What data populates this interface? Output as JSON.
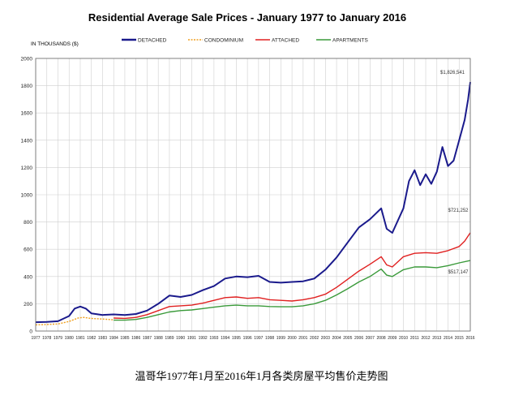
{
  "chart_data": {
    "type": "line",
    "title": "Residential Average Sale Prices  -  January 1977 to January 2016",
    "ylabel": "IN THOUSANDS ($)",
    "xlabel": "",
    "ylim": [
      0,
      2000
    ],
    "yticks": [
      0,
      200,
      400,
      600,
      800,
      1000,
      1200,
      1400,
      1600,
      1800,
      2000
    ],
    "xlim": [
      1977,
      2016
    ],
    "xticks": [
      "1977",
      "1978",
      "1979",
      "1980",
      "1981",
      "1982",
      "1983",
      "1984",
      "1985",
      "1986",
      "1987",
      "1988",
      "1989",
      "1990",
      "1991",
      "1992",
      "1993",
      "1994",
      "1995",
      "1996",
      "1997",
      "1998",
      "1999",
      "2000",
      "2001",
      "2002",
      "2003",
      "2004",
      "2005",
      "2006",
      "2007",
      "2008",
      "2009",
      "2010",
      "2011",
      "2012",
      "2013",
      "2014",
      "2015",
      "2016"
    ],
    "grid": true,
    "legend_position": "top",
    "series": [
      {
        "name": "DETACHED",
        "color": "#1a1a8c",
        "dash": "solid",
        "end_label": "$1,826,541",
        "points": [
          [
            1977,
            65
          ],
          [
            1978,
            67
          ],
          [
            1979,
            72
          ],
          [
            1980,
            110
          ],
          [
            1980.5,
            165
          ],
          [
            1981,
            180
          ],
          [
            1981.5,
            165
          ],
          [
            1982,
            130
          ],
          [
            1983,
            118
          ],
          [
            1984,
            122
          ],
          [
            1985,
            118
          ],
          [
            1986,
            125
          ],
          [
            1987,
            150
          ],
          [
            1988,
            200
          ],
          [
            1989,
            260
          ],
          [
            1990,
            250
          ],
          [
            1991,
            265
          ],
          [
            1992,
            300
          ],
          [
            1993,
            330
          ],
          [
            1994,
            385
          ],
          [
            1995,
            400
          ],
          [
            1996,
            395
          ],
          [
            1997,
            405
          ],
          [
            1998,
            360
          ],
          [
            1999,
            355
          ],
          [
            2000,
            360
          ],
          [
            2001,
            365
          ],
          [
            2002,
            385
          ],
          [
            2003,
            450
          ],
          [
            2004,
            540
          ],
          [
            2005,
            650
          ],
          [
            2006,
            760
          ],
          [
            2007,
            820
          ],
          [
            2008,
            900
          ],
          [
            2008.5,
            750
          ],
          [
            2009,
            720
          ],
          [
            2010,
            900
          ],
          [
            2010.5,
            1100
          ],
          [
            2011,
            1180
          ],
          [
            2011.5,
            1070
          ],
          [
            2012,
            1150
          ],
          [
            2012.5,
            1080
          ],
          [
            2013,
            1170
          ],
          [
            2013.5,
            1350
          ],
          [
            2014,
            1210
          ],
          [
            2014.5,
            1250
          ],
          [
            2015,
            1400
          ],
          [
            2015.5,
            1550
          ],
          [
            2015.8,
            1700
          ],
          [
            2016,
            1827
          ]
        ]
      },
      {
        "name": "CONDOMINIUM",
        "color": "#f0a020",
        "dash": "dotted",
        "end_label": "",
        "points": [
          [
            1977,
            45
          ],
          [
            1978,
            48
          ],
          [
            1979,
            52
          ],
          [
            1980,
            70
          ],
          [
            1980.8,
            95
          ],
          [
            1981.3,
            100
          ],
          [
            1982,
            92
          ],
          [
            1983,
            88
          ],
          [
            1984,
            82
          ]
        ]
      },
      {
        "name": "ATTACHED",
        "color": "#e02020",
        "dash": "solid",
        "end_label": "$721,252",
        "points": [
          [
            1984,
            95
          ],
          [
            1985,
            93
          ],
          [
            1986,
            100
          ],
          [
            1987,
            120
          ],
          [
            1988,
            150
          ],
          [
            1989,
            180
          ],
          [
            1990,
            185
          ],
          [
            1991,
            190
          ],
          [
            1992,
            205
          ],
          [
            1993,
            225
          ],
          [
            1994,
            245
          ],
          [
            1995,
            250
          ],
          [
            1996,
            240
          ],
          [
            1997,
            245
          ],
          [
            1998,
            230
          ],
          [
            1999,
            225
          ],
          [
            2000,
            220
          ],
          [
            2001,
            230
          ],
          [
            2002,
            245
          ],
          [
            2003,
            270
          ],
          [
            2004,
            320
          ],
          [
            2005,
            380
          ],
          [
            2006,
            440
          ],
          [
            2007,
            490
          ],
          [
            2008,
            545
          ],
          [
            2008.5,
            485
          ],
          [
            2009,
            470
          ],
          [
            2010,
            545
          ],
          [
            2011,
            570
          ],
          [
            2012,
            575
          ],
          [
            2013,
            570
          ],
          [
            2014,
            590
          ],
          [
            2015,
            620
          ],
          [
            2015.5,
            660
          ],
          [
            2016,
            721
          ]
        ]
      },
      {
        "name": "APARTMENTS",
        "color": "#3a9a3a",
        "dash": "solid",
        "end_label": "$517,147",
        "points": [
          [
            1984,
            80
          ],
          [
            1985,
            80
          ],
          [
            1986,
            85
          ],
          [
            1987,
            100
          ],
          [
            1988,
            120
          ],
          [
            1989,
            140
          ],
          [
            1990,
            150
          ],
          [
            1991,
            155
          ],
          [
            1992,
            165
          ],
          [
            1993,
            175
          ],
          [
            1994,
            185
          ],
          [
            1995,
            190
          ],
          [
            1996,
            185
          ],
          [
            1997,
            185
          ],
          [
            1998,
            180
          ],
          [
            1999,
            178
          ],
          [
            2000,
            178
          ],
          [
            2001,
            185
          ],
          [
            2002,
            200
          ],
          [
            2003,
            225
          ],
          [
            2004,
            265
          ],
          [
            2005,
            310
          ],
          [
            2006,
            360
          ],
          [
            2007,
            400
          ],
          [
            2008,
            455
          ],
          [
            2008.5,
            410
          ],
          [
            2009,
            400
          ],
          [
            2010,
            450
          ],
          [
            2011,
            470
          ],
          [
            2012,
            470
          ],
          [
            2013,
            465
          ],
          [
            2014,
            480
          ],
          [
            2015,
            500
          ],
          [
            2016,
            517
          ]
        ]
      }
    ]
  },
  "caption": "温哥华1977年1月至2016年1月各类房屋平均售价走势图"
}
